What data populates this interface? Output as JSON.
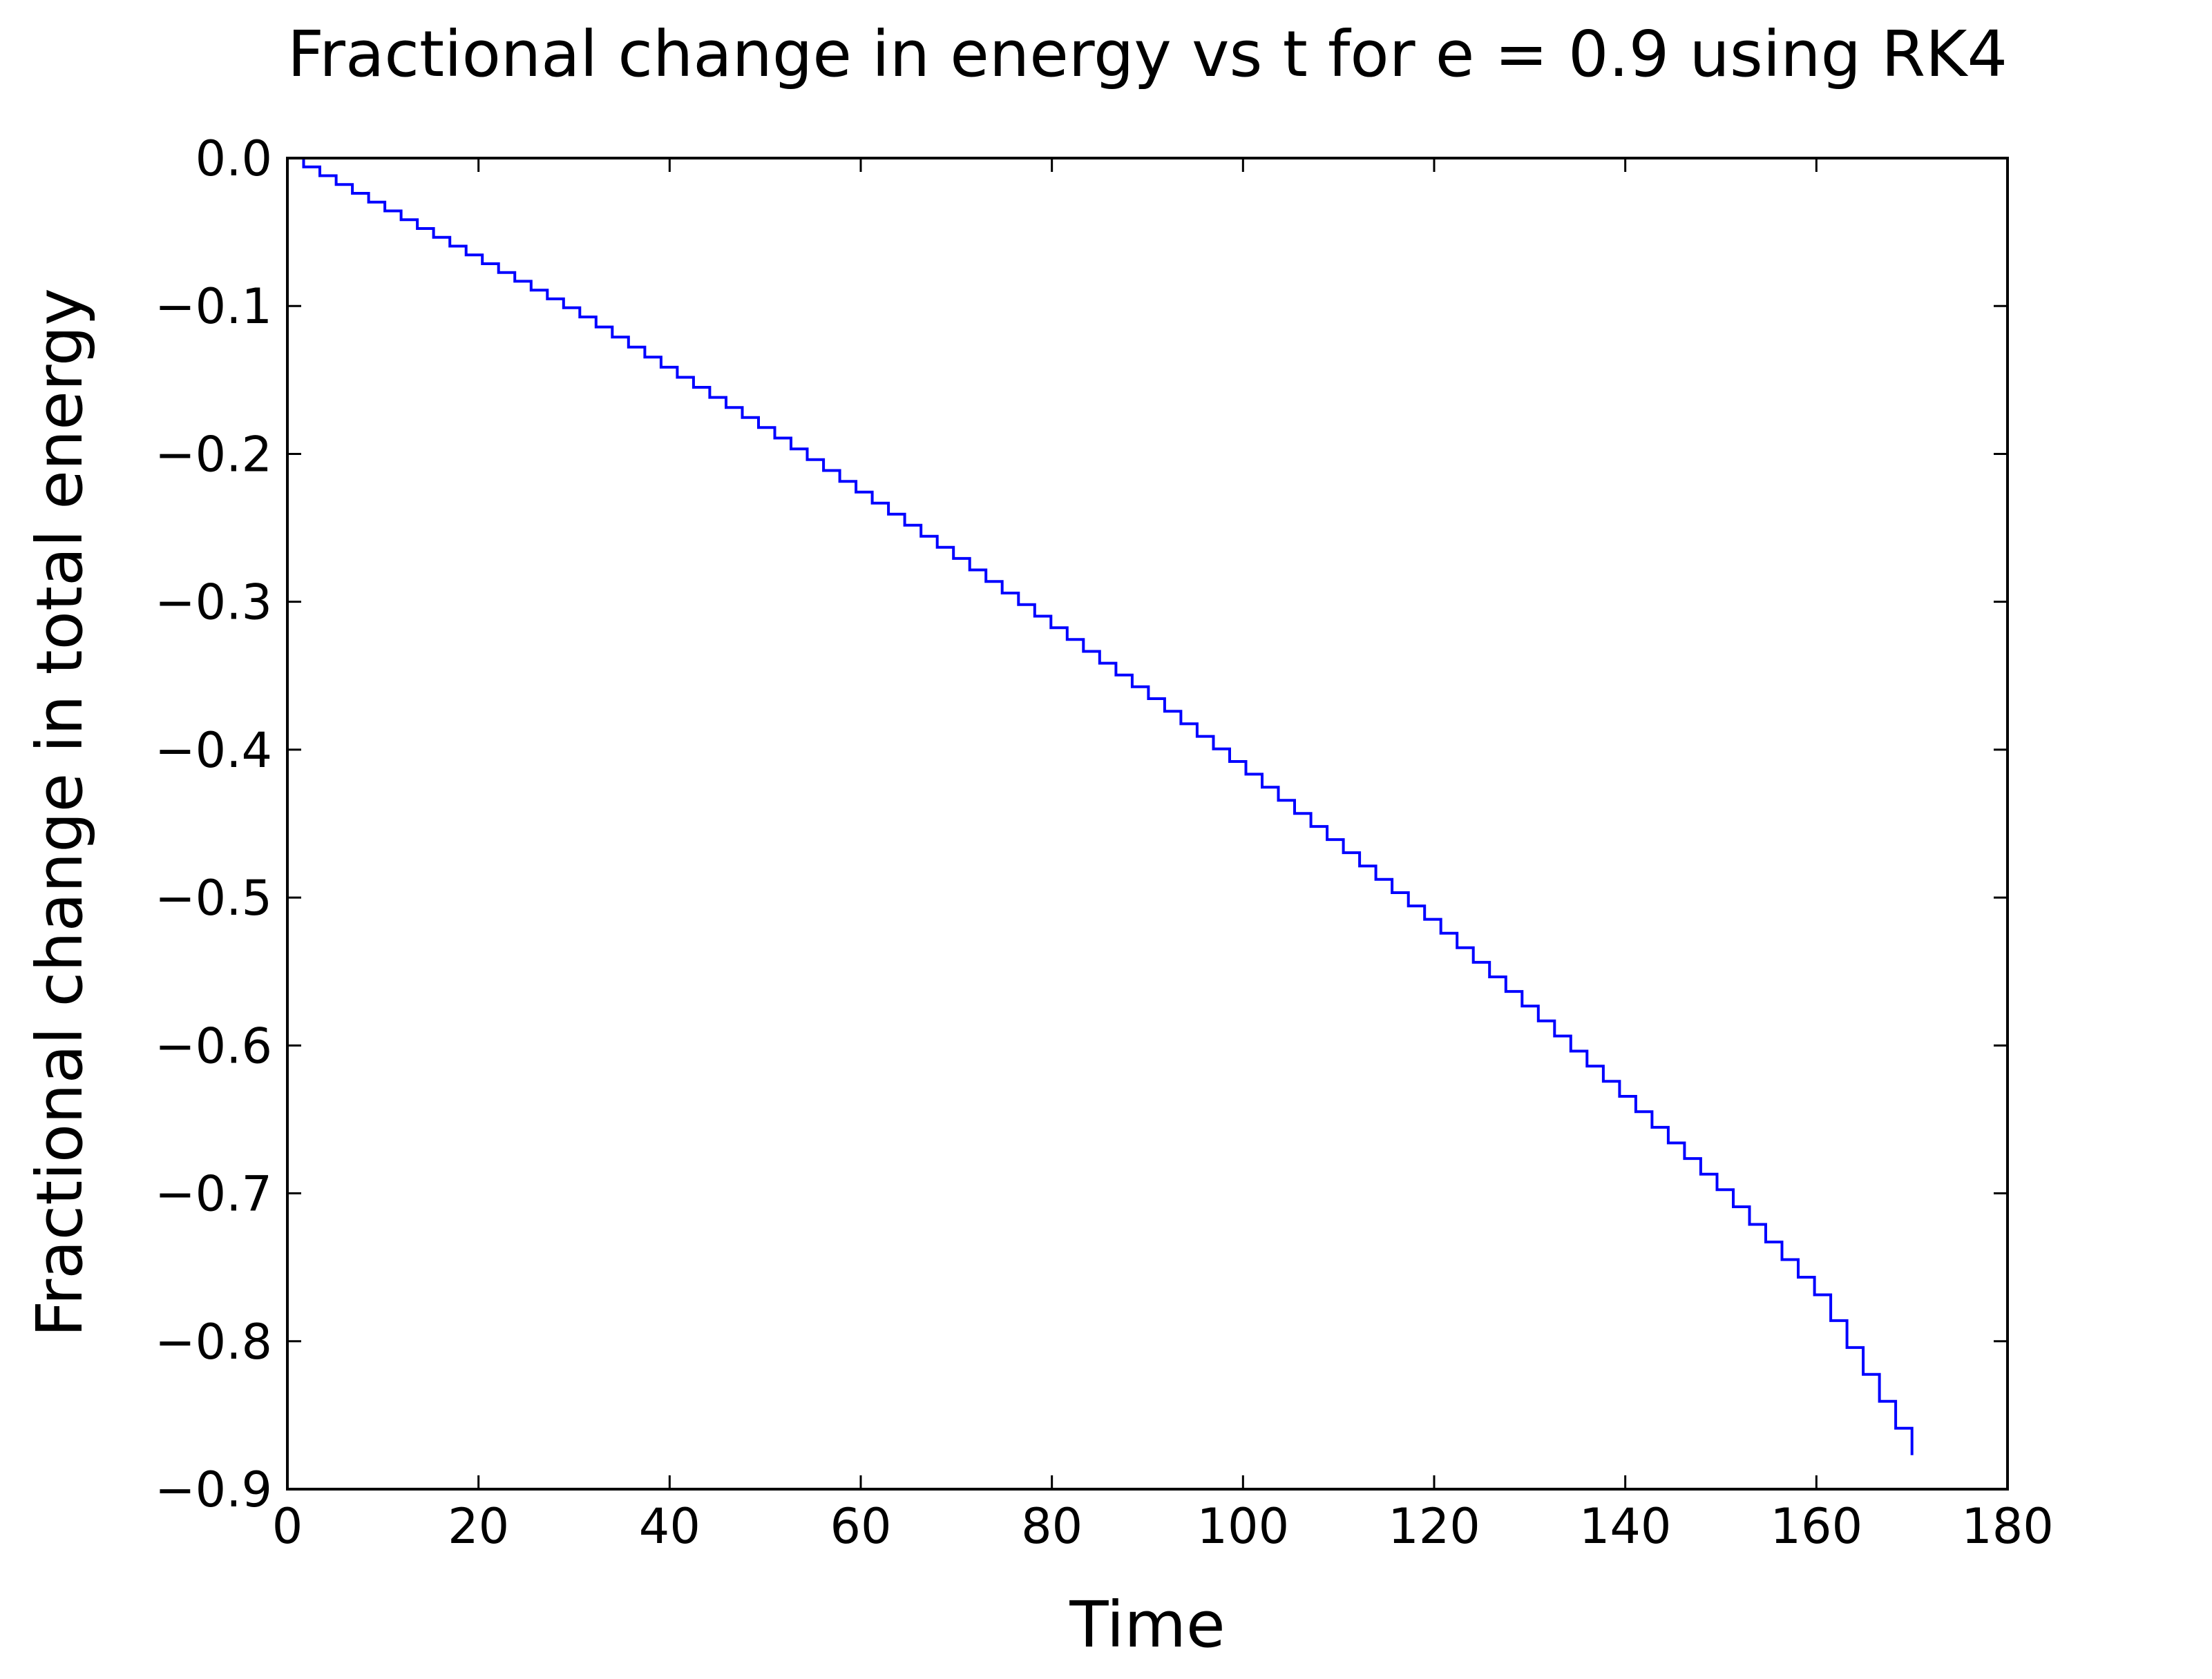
{
  "chart_data": {
    "type": "line",
    "title": "Fractional change in energy vs t for e = 0.9 using RK4",
    "xlabel": "Time",
    "ylabel": "Fractional change in total energy",
    "xlim": [
      0,
      180
    ],
    "ylim": [
      -0.9,
      0.0
    ],
    "xticks": [
      0,
      20,
      40,
      60,
      80,
      100,
      120,
      140,
      160,
      180
    ],
    "yticks": [
      0.0,
      -0.1,
      -0.2,
      -0.3,
      -0.4,
      -0.5,
      -0.6,
      -0.7,
      -0.8,
      -0.9
    ],
    "xtick_labels": [
      "0",
      "20",
      "40",
      "60",
      "80",
      "100",
      "120",
      "140",
      "160",
      "180"
    ],
    "ytick_labels": [
      "0.0",
      "−0.1",
      "−0.2",
      "−0.3",
      "−0.4",
      "−0.5",
      "−0.6",
      "−0.7",
      "−0.8",
      "−0.9"
    ],
    "grid": false,
    "series": [
      {
        "color": "#0000ff",
        "style": "step",
        "x": [
          0,
          10,
          20,
          30,
          40,
          50,
          60,
          70,
          80,
          90,
          100,
          110,
          120,
          130,
          140,
          150,
          160,
          170
        ],
        "y": [
          0.0,
          -0.035,
          -0.07,
          -0.105,
          -0.145,
          -0.185,
          -0.228,
          -0.272,
          -0.318,
          -0.365,
          -0.415,
          -0.467,
          -0.52,
          -0.578,
          -0.638,
          -0.7,
          -0.77,
          -0.877
        ]
      }
    ]
  }
}
